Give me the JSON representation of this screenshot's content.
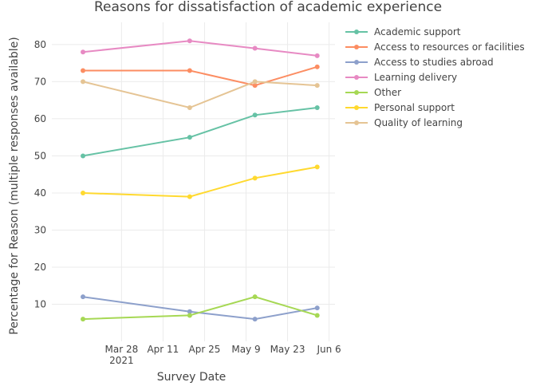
{
  "chart_data": {
    "type": "line",
    "title": "Reasons for dissatisfaction of academic experience",
    "xlabel": "Survey Date",
    "ylabel": "Percentage for Reason (multiple responses available)",
    "x_dates": [
      "2021-03-15",
      "2021-04-20",
      "2021-05-12",
      "2021-06-02"
    ],
    "xlim_days": [
      -10.5,
      85
    ],
    "x_ticks": [
      {
        "day": 13,
        "label": "Mar 28",
        "sub": "2021"
      },
      {
        "day": 27,
        "label": "Apr 11",
        "sub": ""
      },
      {
        "day": 41,
        "label": "Apr 25",
        "sub": ""
      },
      {
        "day": 55,
        "label": "May 9",
        "sub": ""
      },
      {
        "day": 69,
        "label": "May 23",
        "sub": ""
      },
      {
        "day": 83,
        "label": "Jun 6",
        "sub": ""
      }
    ],
    "ylim": [
      0,
      86
    ],
    "y_ticks": [
      10,
      20,
      30,
      40,
      50,
      60,
      70,
      80
    ],
    "series": [
      {
        "name": "Academic support",
        "color": "#66c2a5",
        "values": [
          50,
          55,
          61,
          63
        ]
      },
      {
        "name": "Access to resources or facilities",
        "color": "#fc8d62",
        "values": [
          73,
          73,
          69,
          74
        ]
      },
      {
        "name": "Access to studies abroad",
        "color": "#8da0cb",
        "values": [
          12,
          8,
          6,
          9
        ]
      },
      {
        "name": "Learning delivery",
        "color": "#e78ac3",
        "values": [
          78,
          81,
          79,
          77
        ]
      },
      {
        "name": "Other",
        "color": "#a6d854",
        "values": [
          6,
          7,
          12,
          7
        ]
      },
      {
        "name": "Personal support",
        "color": "#ffd92f",
        "values": [
          40,
          39,
          44,
          47
        ]
      },
      {
        "name": "Quality of learning",
        "color": "#e5c494",
        "values": [
          70,
          63,
          70,
          69
        ]
      }
    ],
    "series_x_days": [
      0,
      36,
      58,
      79
    ],
    "legend_position": "top-right"
  }
}
